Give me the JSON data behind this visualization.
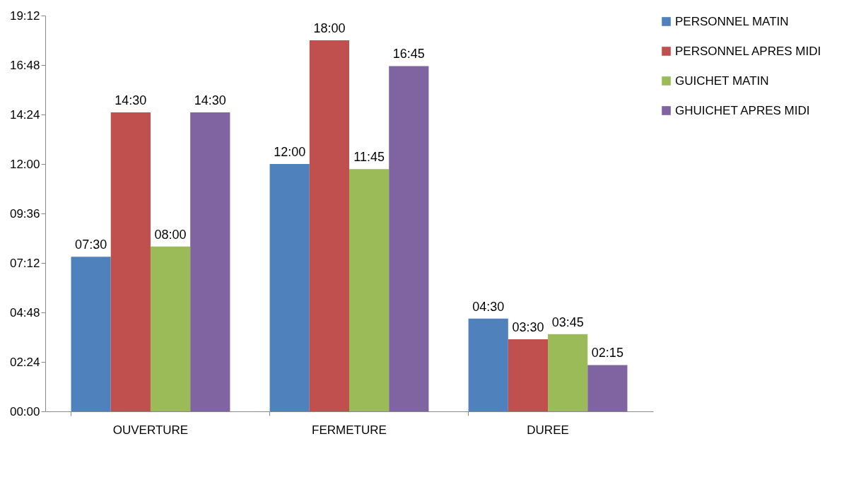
{
  "chart_data": {
    "type": "bar",
    "categories": [
      "OUVERTURE",
      "FERMETURE",
      "DUREE"
    ],
    "series": [
      {
        "name": "PERSONNEL MATIN",
        "color": "#4f81bd",
        "values": [
          7.5,
          12,
          4.5
        ],
        "value_labels": [
          "07:30",
          "12:00",
          "04:30"
        ]
      },
      {
        "name": "PERSONNEL APRES MIDI",
        "color": "#c0504d",
        "values": [
          14.5,
          18,
          3.5
        ],
        "value_labels": [
          "14:30",
          "18:00",
          "03:30"
        ]
      },
      {
        "name": "GUICHET MATIN",
        "color": "#9bbb59",
        "values": [
          8,
          11.75,
          3.75
        ],
        "value_labels": [
          "08:00",
          "11:45",
          "03:45"
        ]
      },
      {
        "name": "GHUICHET APRES MIDI",
        "color": "#8064a2",
        "values": [
          14.5,
          16.75,
          2.25
        ],
        "value_labels": [
          "14:30",
          "16:45",
          "02:15"
        ]
      }
    ],
    "ylim": [
      0,
      19.2
    ],
    "yticks": [
      {
        "value": 0,
        "label": "00:00"
      },
      {
        "value": 2.4,
        "label": "02:24"
      },
      {
        "value": 4.8,
        "label": "04:48"
      },
      {
        "value": 7.2,
        "label": "07:12"
      },
      {
        "value": 9.6,
        "label": "09:36"
      },
      {
        "value": 12,
        "label": "12:00"
      },
      {
        "value": 14.4,
        "label": "14:24"
      },
      {
        "value": 16.8,
        "label": "16:48"
      },
      {
        "value": 19.2,
        "label": "19:12"
      }
    ],
    "grid": false,
    "legend": "right"
  }
}
